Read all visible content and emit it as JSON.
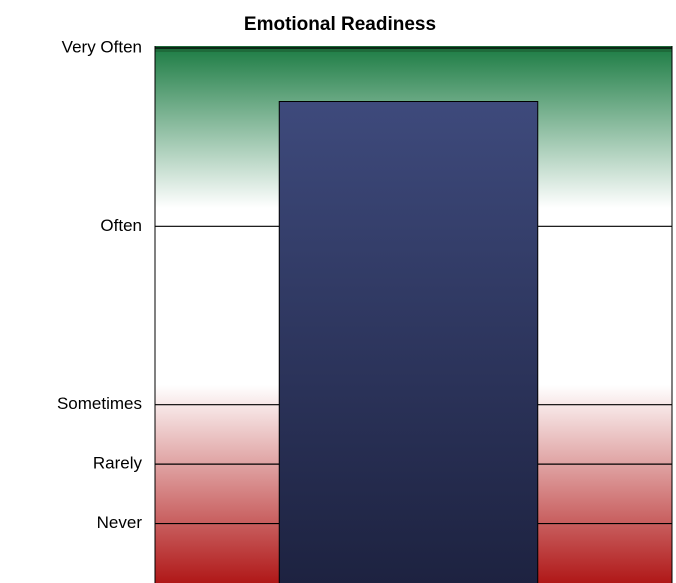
{
  "chart_data": {
    "type": "bar",
    "title": "Emotional Readiness",
    "categories": [
      null
    ],
    "values": [
      8.1
    ],
    "color": "#2f3862",
    "ylim": [
      0,
      9
    ],
    "yticks": [
      {
        "value": 1,
        "label": "Never"
      },
      {
        "value": 2,
        "label": "Rarely"
      },
      {
        "value": 3,
        "label": "Sometimes"
      },
      {
        "value": 6,
        "label": "Often"
      },
      {
        "value": 9,
        "label": "Very Often"
      }
    ],
    "grid": true
  }
}
